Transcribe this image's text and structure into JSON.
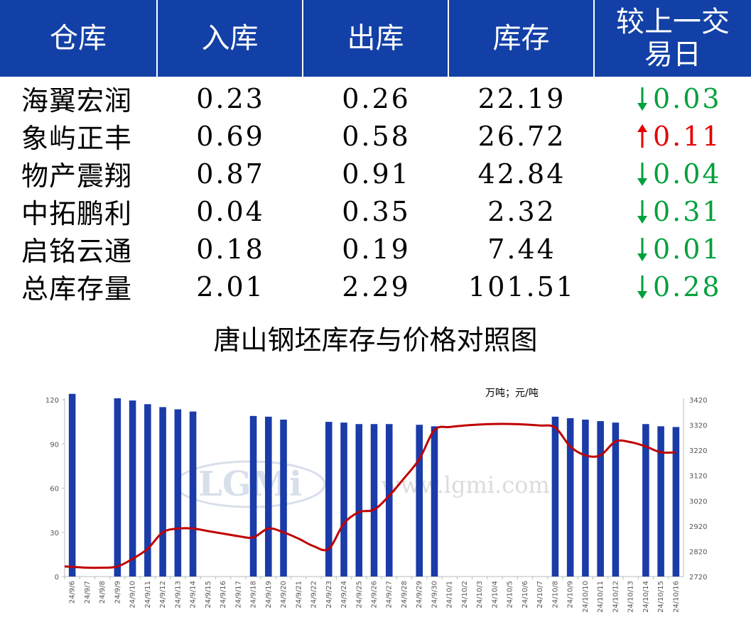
{
  "table": {
    "headers": [
      "仓库",
      "入库",
      "出库",
      "库存",
      "较上一交易日"
    ],
    "rows": [
      {
        "name": "海翼宏润",
        "in": "0.23",
        "out": "0.26",
        "stock": "22.19",
        "dir": "down",
        "change": "0.03"
      },
      {
        "name": "象屿正丰",
        "in": "0.69",
        "out": "0.58",
        "stock": "26.72",
        "dir": "up",
        "change": "0.11"
      },
      {
        "name": "物产震翔",
        "in": "0.87",
        "out": "0.91",
        "stock": "42.84",
        "dir": "down",
        "change": "0.04"
      },
      {
        "name": "中拓鹏利",
        "in": "0.04",
        "out": "0.35",
        "stock": "2.32",
        "dir": "down",
        "change": "0.31"
      },
      {
        "name": "启铭云通",
        "in": "0.18",
        "out": "0.19",
        "stock": "7.44",
        "dir": "down",
        "change": "0.01"
      },
      {
        "name": "总库存量",
        "in": "2.01",
        "out": "2.29",
        "stock": "101.51",
        "dir": "down",
        "change": "0.28"
      }
    ]
  },
  "colors": {
    "header_bg": "#1240a6",
    "up": "#e60000",
    "down": "#00a03c",
    "bar": "#1a3ba8",
    "line": "#c00000"
  },
  "watermark": {
    "logo": "LGMi",
    "url": "www.lgmi.com"
  },
  "chart_data": {
    "type": "bar",
    "title": "唐山钢坯库存与价格对照图",
    "unit_label": "万吨；元/吨",
    "categories": [
      "24/9/6",
      "24/9/7",
      "24/9/8",
      "24/9/9",
      "24/9/10",
      "24/9/11",
      "24/9/12",
      "24/9/13",
      "24/9/14",
      "24/9/15",
      "24/9/16",
      "24/9/17",
      "24/9/18",
      "24/9/19",
      "24/9/20",
      "24/9/21",
      "24/9/22",
      "24/9/23",
      "24/9/24",
      "24/9/25",
      "24/9/26",
      "24/9/27",
      "24/9/28",
      "24/9/29",
      "24/9/30",
      "24/10/1",
      "24/10/2",
      "24/10/3",
      "24/10/4",
      "24/10/5",
      "24/10/6",
      "24/10/7",
      "24/10/8",
      "24/10/9",
      "24/10/10",
      "24/10/11",
      "24/10/12",
      "24/10/13",
      "24/10/14",
      "24/10/15",
      "24/10/16"
    ],
    "series": [
      {
        "axis": "left",
        "type": "bar",
        "values": [
          124,
          null,
          null,
          121,
          119.5,
          117,
          115,
          113.5,
          112,
          null,
          null,
          null,
          109,
          108.5,
          106.5,
          null,
          null,
          105,
          104.5,
          103.5,
          103.5,
          103.5,
          null,
          103,
          102,
          null,
          null,
          null,
          null,
          null,
          null,
          null,
          108.5,
          107.5,
          106.5,
          105.5,
          104.5,
          null,
          103.5,
          102,
          101.5
        ]
      },
      {
        "axis": "right",
        "type": "line",
        "values": [
          2760,
          2755,
          2755,
          2760,
          2790,
          2830,
          2895,
          2910,
          2910,
          2900,
          2890,
          2880,
          2875,
          2910,
          2895,
          2870,
          2840,
          2830,
          2930,
          2975,
          2985,
          3040,
          3110,
          3185,
          3300,
          3312,
          3318,
          3322,
          3324,
          3324,
          3322,
          3318,
          3310,
          3235,
          3200,
          3200,
          3255,
          3252,
          3235,
          3212,
          3212
        ]
      }
    ],
    "y_left": {
      "min": 0,
      "max": 120,
      "ticks": [
        0,
        30,
        60,
        90,
        120
      ]
    },
    "y_right": {
      "min": 2720,
      "max": 3420,
      "ticks": [
        2720,
        2820,
        2920,
        3020,
        3120,
        3220,
        3320,
        3420
      ]
    }
  }
}
